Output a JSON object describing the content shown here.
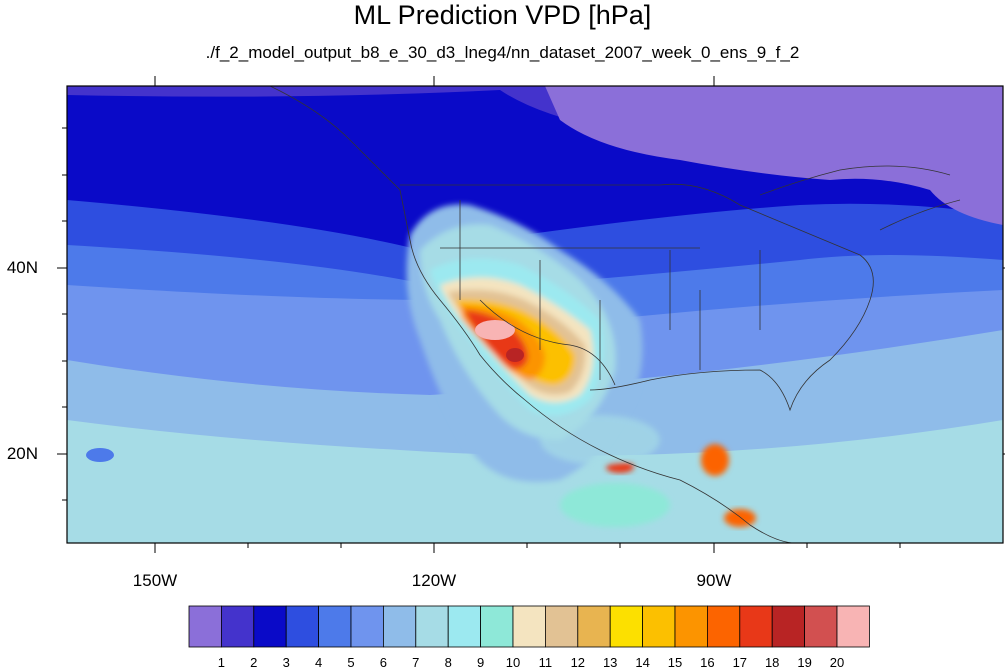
{
  "title": "ML Prediction VPD [hPa]",
  "subtitle": "./f_2_model_output_b8_e_30_d3_lneg4/nn_dataset_2007_week_0_ens_9_f_2",
  "map": {
    "lat_ticks": [
      {
        "value": 40,
        "label": "40N"
      },
      {
        "value": 20,
        "label": "20N"
      }
    ],
    "lon_ticks": [
      {
        "value": -150,
        "label": "150W"
      },
      {
        "value": -120,
        "label": "120W"
      },
      {
        "value": -90,
        "label": "90W"
      }
    ],
    "lon_range": [
      -160,
      -58
    ],
    "lat_range": [
      10,
      59
    ]
  },
  "colorbar": {
    "labels": [
      "1",
      "2",
      "3",
      "4",
      "5",
      "6",
      "7",
      "8",
      "9",
      "10",
      "11",
      "12",
      "13",
      "14",
      "15",
      "16",
      "17",
      "18",
      "19",
      "20"
    ],
    "colors": [
      "#8b6fd9",
      "#4433cc",
      "#0a0ac8",
      "#2e4ee0",
      "#4d7aea",
      "#6f94ee",
      "#8fbce9",
      "#a6dce6",
      "#9ce9f0",
      "#8ee8d8",
      "#f4e4c0",
      "#e2c294",
      "#e8b450",
      "#fce000",
      "#fcc000",
      "#fc9400",
      "#fc6400",
      "#e83818",
      "#b82424",
      "#d25050",
      "#f8b4b4"
    ]
  }
}
